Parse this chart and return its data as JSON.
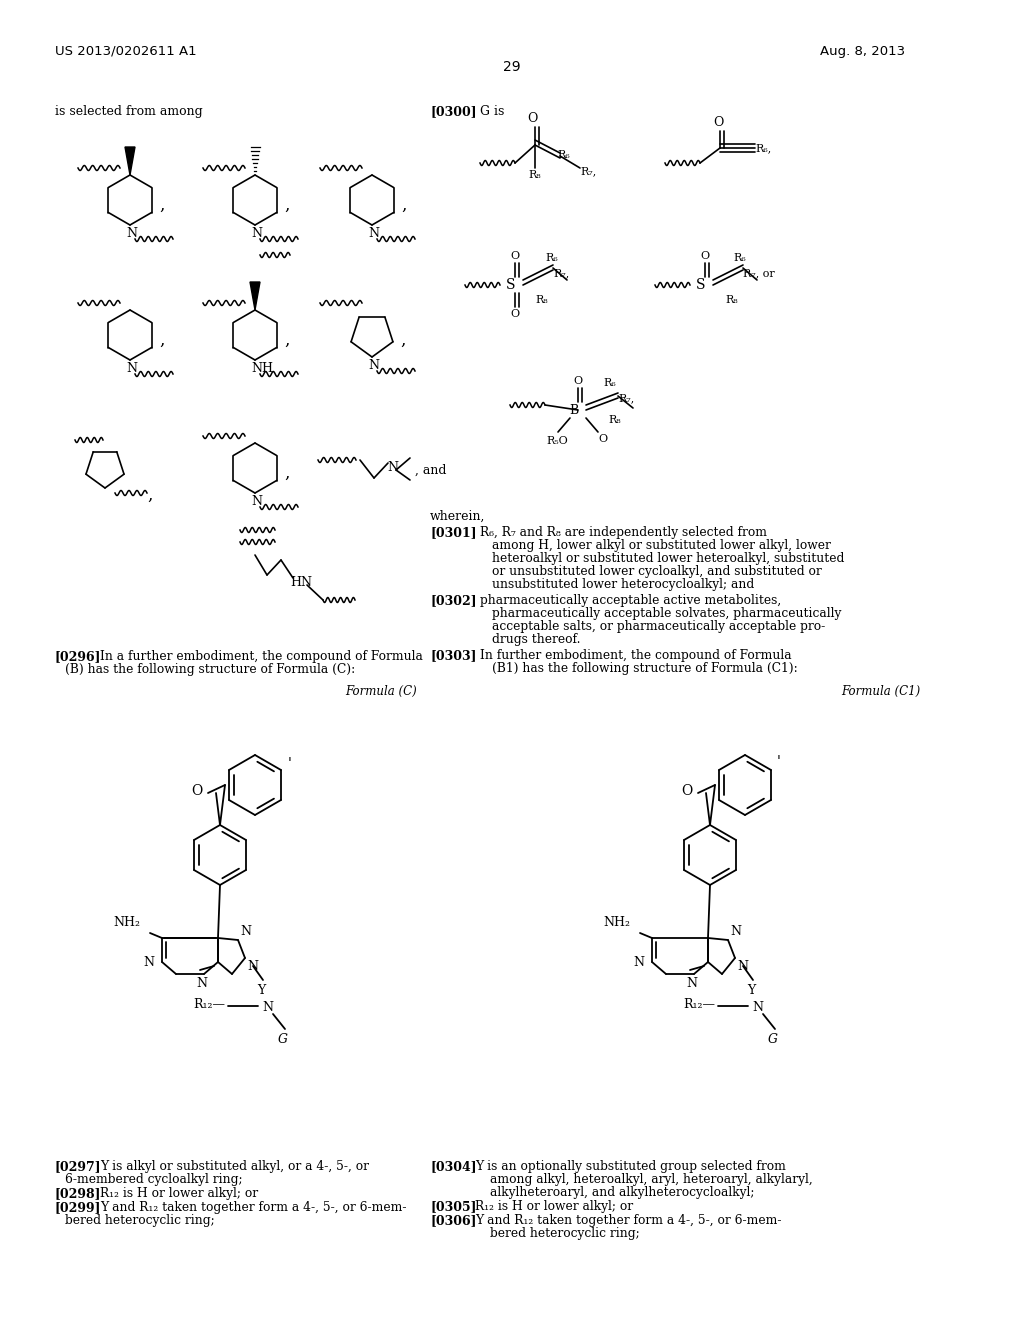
{
  "page_header_left": "US 2013/0202611 A1",
  "page_header_right": "Aug. 8, 2013",
  "page_number": "29",
  "background_color": "#ffffff",
  "text_color": "#000000",
  "figsize": [
    10.24,
    13.2
  ],
  "dpi": 100
}
